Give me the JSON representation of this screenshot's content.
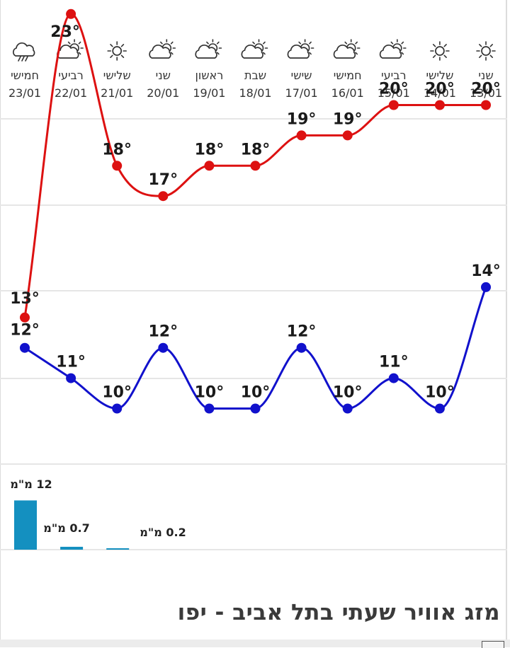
{
  "title": "מזג אוויר שעתי בתל אביב - יפו",
  "colors": {
    "max_line": "#dd1111",
    "min_line": "#1111cc",
    "precip_bar": "#1490c0",
    "grid": "#e6e6e6",
    "text": "#1a1a1a"
  },
  "chart_data": {
    "type": "line",
    "x": [
      "23/01",
      "22/01",
      "21/01",
      "20/01",
      "19/01",
      "18/01",
      "17/01",
      "16/01",
      "15/01",
      "14/01",
      "13/01"
    ],
    "days": [
      "חמישי",
      "רביעי",
      "שלישי",
      "שני",
      "ראשון",
      "שבת",
      "שישי",
      "חמישי",
      "רביעי",
      "שלישי",
      "שני"
    ],
    "icons": [
      "rain-cloud-icon",
      "sun-cloud-icon",
      "sun-icon",
      "sun-cloud-icon",
      "sun-cloud-icon",
      "sun-cloud-icon",
      "sun-cloud-icon",
      "sun-cloud-icon",
      "sun-cloud-icon",
      "sun-icon",
      "sun-icon"
    ],
    "series": [
      {
        "values": [
          13,
          23,
          18,
          17,
          18,
          18,
          19,
          19,
          20,
          20,
          20
        ],
        "labels": [
          "13°",
          "23°",
          "18°",
          "17°",
          "18°",
          "18°",
          "19°",
          "19°",
          "20°",
          "20°",
          "20°"
        ]
      },
      {
        "values": [
          12,
          11,
          10,
          12,
          10,
          10,
          12,
          10,
          11,
          10,
          14
        ],
        "labels": [
          "12°",
          "11°",
          "10°",
          "12°",
          "10°",
          "10°",
          "12°",
          "10°",
          "11°",
          "10°",
          "14°"
        ]
      }
    ],
    "precipitation": {
      "values": [
        12,
        0.7,
        0.2,
        null,
        null,
        null,
        null,
        null,
        null,
        null,
        null
      ],
      "labels": [
        "12 מ\"מ",
        "0.7 מ\"מ",
        "0.2 מ\"מ",
        "",
        "",
        "",
        "",
        "",
        "",
        "",
        ""
      ]
    },
    "grid": true
  }
}
